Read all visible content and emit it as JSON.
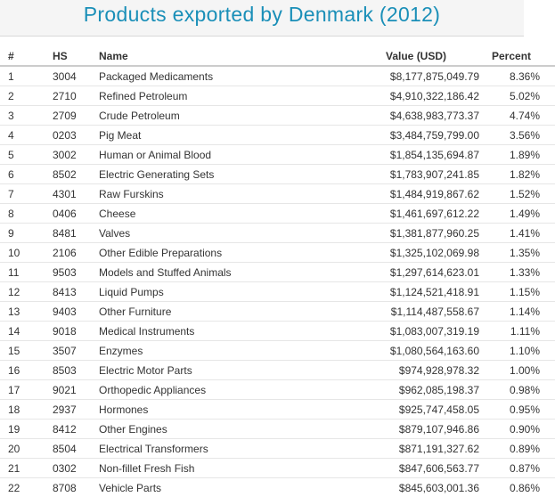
{
  "title": "Products exported by Denmark (2012)",
  "table": {
    "headers": {
      "rank": "#",
      "hs": "HS",
      "name": "Name",
      "value": "Value (USD)",
      "percent": "Percent"
    },
    "rows": [
      {
        "rank": "1",
        "hs": "3004",
        "name": "Packaged Medicaments",
        "value": "$8,177,875,049.79",
        "percent": "8.36%"
      },
      {
        "rank": "2",
        "hs": "2710",
        "name": "Refined Petroleum",
        "value": "$4,910,322,186.42",
        "percent": "5.02%"
      },
      {
        "rank": "3",
        "hs": "2709",
        "name": "Crude Petroleum",
        "value": "$4,638,983,773.37",
        "percent": "4.74%"
      },
      {
        "rank": "4",
        "hs": "0203",
        "name": "Pig Meat",
        "value": "$3,484,759,799.00",
        "percent": "3.56%"
      },
      {
        "rank": "5",
        "hs": "3002",
        "name": "Human or Animal Blood",
        "value": "$1,854,135,694.87",
        "percent": "1.89%"
      },
      {
        "rank": "6",
        "hs": "8502",
        "name": "Electric Generating Sets",
        "value": "$1,783,907,241.85",
        "percent": "1.82%"
      },
      {
        "rank": "7",
        "hs": "4301",
        "name": "Raw Furskins",
        "value": "$1,484,919,867.62",
        "percent": "1.52%"
      },
      {
        "rank": "8",
        "hs": "0406",
        "name": "Cheese",
        "value": "$1,461,697,612.22",
        "percent": "1.49%"
      },
      {
        "rank": "9",
        "hs": "8481",
        "name": "Valves",
        "value": "$1,381,877,960.25",
        "percent": "1.41%"
      },
      {
        "rank": "10",
        "hs": "2106",
        "name": "Other Edible Preparations",
        "value": "$1,325,102,069.98",
        "percent": "1.35%"
      },
      {
        "rank": "11",
        "hs": "9503",
        "name": "Models and Stuffed Animals",
        "value": "$1,297,614,623.01",
        "percent": "1.33%"
      },
      {
        "rank": "12",
        "hs": "8413",
        "name": "Liquid Pumps",
        "value": "$1,124,521,418.91",
        "percent": "1.15%"
      },
      {
        "rank": "13",
        "hs": "9403",
        "name": "Other Furniture",
        "value": "$1,114,487,558.67",
        "percent": "1.14%"
      },
      {
        "rank": "14",
        "hs": "9018",
        "name": "Medical Instruments",
        "value": "$1,083,007,319.19",
        "percent": "1.11%"
      },
      {
        "rank": "15",
        "hs": "3507",
        "name": "Enzymes",
        "value": "$1,080,564,163.60",
        "percent": "1.10%"
      },
      {
        "rank": "16",
        "hs": "8503",
        "name": "Electric Motor Parts",
        "value": "$974,928,978.32",
        "percent": "1.00%"
      },
      {
        "rank": "17",
        "hs": "9021",
        "name": "Orthopedic Appliances",
        "value": "$962,085,198.37",
        "percent": "0.98%"
      },
      {
        "rank": "18",
        "hs": "2937",
        "name": "Hormones",
        "value": "$925,747,458.05",
        "percent": "0.95%"
      },
      {
        "rank": "19",
        "hs": "8412",
        "name": "Other Engines",
        "value": "$879,107,946.86",
        "percent": "0.90%"
      },
      {
        "rank": "20",
        "hs": "8504",
        "name": "Electrical Transformers",
        "value": "$871,191,327.62",
        "percent": "0.89%"
      },
      {
        "rank": "21",
        "hs": "0302",
        "name": "Non-fillet Fresh Fish",
        "value": "$847,606,563.77",
        "percent": "0.87%"
      },
      {
        "rank": "22",
        "hs": "8708",
        "name": "Vehicle Parts",
        "value": "$845,603,001.36",
        "percent": "0.86%"
      }
    ]
  }
}
